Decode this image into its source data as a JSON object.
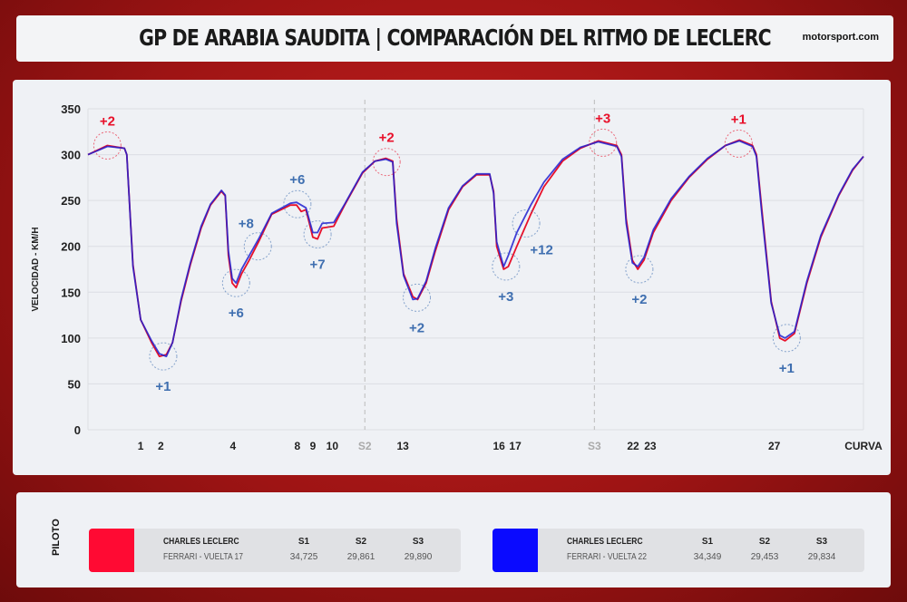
{
  "header": {
    "title": "GP DE ARABIA SAUDITA | COMPARACIÓN DEL RITMO DE LECLERC",
    "brand": "motorsport.com"
  },
  "chart_data": {
    "type": "line",
    "title": "",
    "ylabel": "VELOCIDAD - KM/H",
    "xlabel": "CURVA",
    "ylim": [
      0,
      350
    ],
    "yticks": [
      0,
      50,
      100,
      150,
      200,
      250,
      300,
      350
    ],
    "grid": "horizontal",
    "x_unit_note": "lap distance %",
    "x": [
      0,
      2.5,
      4.7,
      5.0,
      5.8,
      6.8,
      8.2,
      9.2,
      10.1,
      10.9,
      12.0,
      13.2,
      14.6,
      15.8,
      17.2,
      17.7,
      18.1,
      18.6,
      19.1,
      19.8,
      20.8,
      22.0,
      23.7,
      26.1,
      26.9,
      27.5,
      28.1,
      29.0,
      29.6,
      30.2,
      31.7,
      33.1,
      35.4,
      37.0,
      38.4,
      39.3,
      39.8,
      40.7,
      41.9,
      42.5,
      43.6,
      44.8,
      46.5,
      48.3,
      50.1,
      51.8,
      52.3,
      52.7,
      53.6,
      54.2,
      55.3,
      57.1,
      58.8,
      61.2,
      63.5,
      65.8,
      68.2,
      68.8,
      69.4,
      70.2,
      70.9,
      71.7,
      72.9,
      75.2,
      77.5,
      79.9,
      82.2,
      84.0,
      85.7,
      86.2,
      86.9,
      88.1,
      89.2,
      89.9,
      91.1,
      92.7,
      94.5,
      96.8,
      98.6,
      100
    ],
    "series": [
      {
        "color": "#e8102a",
        "values": [
          300,
          310,
          307,
          300,
          180,
          120,
          95,
          80,
          82,
          95,
          140,
          180,
          220,
          245,
          260,
          255,
          190,
          160,
          155,
          170,
          185,
          205,
          235,
          245,
          245,
          238,
          240,
          210,
          208,
          220,
          222,
          245,
          280,
          293,
          296,
          293,
          230,
          170,
          145,
          142,
          160,
          195,
          240,
          265,
          278,
          278,
          260,
          200,
          175,
          178,
          200,
          235,
          265,
          293,
          307,
          315,
          310,
          300,
          230,
          185,
          175,
          185,
          215,
          250,
          275,
          295,
          310,
          316,
          310,
          300,
          240,
          140,
          100,
          97,
          105,
          160,
          210,
          255,
          283,
          298
        ]
      },
      {
        "color": "#2020d0",
        "values": [
          300,
          309,
          307,
          300,
          178,
          120,
          97,
          83,
          80,
          95,
          142,
          182,
          222,
          246,
          261,
          256,
          195,
          165,
          160,
          175,
          190,
          208,
          236,
          247,
          248,
          245,
          242,
          215,
          215,
          225,
          226,
          246,
          281,
          293,
          295,
          292,
          225,
          168,
          142,
          143,
          162,
          198,
          242,
          266,
          279,
          279,
          258,
          205,
          178,
          190,
          215,
          245,
          270,
          295,
          308,
          314,
          309,
          298,
          225,
          182,
          178,
          188,
          218,
          252,
          276,
          296,
          310,
          315,
          309,
          298,
          235,
          138,
          103,
          100,
          107,
          162,
          212,
          256,
          284,
          298
        ]
      }
    ],
    "corner_ticks": [
      {
        "x": 6.8,
        "label": "1"
      },
      {
        "x": 9.4,
        "label": "2"
      },
      {
        "x": 18.7,
        "label": "4"
      },
      {
        "x": 27.0,
        "label": "8"
      },
      {
        "x": 29.0,
        "label": "9"
      },
      {
        "x": 31.5,
        "label": "10"
      },
      {
        "x": 35.7,
        "label": "S2",
        "sector": true
      },
      {
        "x": 40.6,
        "label": "13"
      },
      {
        "x": 53.0,
        "label": "16"
      },
      {
        "x": 55.1,
        "label": "17"
      },
      {
        "x": 65.3,
        "label": "S3",
        "sector": true
      },
      {
        "x": 70.3,
        "label": "22"
      },
      {
        "x": 72.5,
        "label": "23"
      },
      {
        "x": 88.5,
        "label": "27"
      },
      {
        "x": 100,
        "label": "CURVA"
      }
    ],
    "sector_lines": [
      35.7,
      65.3
    ],
    "annotations": [
      {
        "x": 2.5,
        "y": 310,
        "label": "+2",
        "color": "#e8102a",
        "pos": "above"
      },
      {
        "x": 9.7,
        "y": 80,
        "label": "+1",
        "color": "#3f6fb0",
        "pos": "below"
      },
      {
        "x": 19.1,
        "y": 160,
        "label": "+6",
        "color": "#3f6fb0",
        "pos": "below"
      },
      {
        "x": 21.9,
        "y": 200,
        "label": "+8",
        "color": "#3f6fb0",
        "pos": "aboveleft"
      },
      {
        "x": 27.0,
        "y": 246,
        "label": "+6",
        "color": "#3f6fb0",
        "pos": "above"
      },
      {
        "x": 29.6,
        "y": 213,
        "label": "+7",
        "color": "#3f6fb0",
        "pos": "below"
      },
      {
        "x": 38.5,
        "y": 292,
        "label": "+2",
        "color": "#e8102a",
        "pos": "above"
      },
      {
        "x": 42.4,
        "y": 144,
        "label": "+2",
        "color": "#3f6fb0",
        "pos": "below"
      },
      {
        "x": 53.9,
        "y": 178,
        "label": "+3",
        "color": "#3f6fb0",
        "pos": "below"
      },
      {
        "x": 56.5,
        "y": 225,
        "label": "+12",
        "color": "#3f6fb0",
        "pos": "belowright"
      },
      {
        "x": 66.4,
        "y": 313,
        "label": "+3",
        "color": "#e8102a",
        "pos": "above"
      },
      {
        "x": 71.1,
        "y": 175,
        "label": "+2",
        "color": "#3f6fb0",
        "pos": "below"
      },
      {
        "x": 83.9,
        "y": 312,
        "label": "+1",
        "color": "#e8102a",
        "pos": "above"
      },
      {
        "x": 90.1,
        "y": 100,
        "label": "+1",
        "color": "#3f6fb0",
        "pos": "below"
      }
    ]
  },
  "legend": {
    "title": "PILOTO",
    "drivers": [
      {
        "color": "#ff0a33",
        "name": "CHARLES LECLERC",
        "team_lap": "FERRARI - VUELTA 17",
        "s1_label": "S1",
        "s2_label": "S2",
        "s3_label": "S3",
        "s1": "34,725",
        "s2": "29,861",
        "s3": "29,890"
      },
      {
        "color": "#0a0aff",
        "name": "CHARLES LECLERC",
        "team_lap": "FERRARI - VUELTA 22",
        "s1_label": "S1",
        "s2_label": "S2",
        "s3_label": "S3",
        "s1": "34,349",
        "s2": "29,453",
        "s3": "29,834"
      }
    ]
  }
}
